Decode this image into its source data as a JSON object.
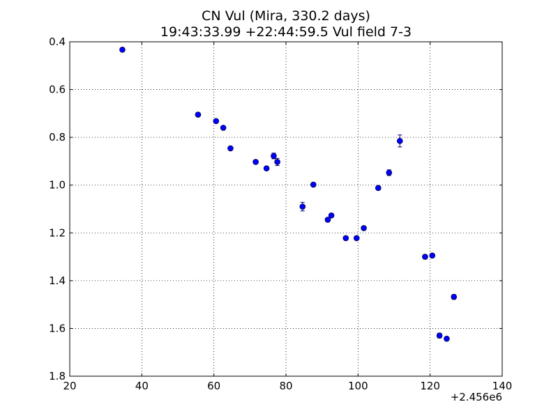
{
  "chart_data": {
    "type": "scatter",
    "title": "CN Vul (Mira, 330.2 days)",
    "subtitle": "19:43:33.99 +22:44:59.5 Vul field 7-3",
    "xlabel": "",
    "ylabel": "",
    "x_offset_label": "+2.456e6",
    "xlim": [
      20,
      140
    ],
    "ylim": [
      0.4,
      1.8
    ],
    "y_inverted": true,
    "grid": true,
    "x_ticks": [
      20,
      40,
      60,
      80,
      100,
      120,
      140
    ],
    "x_tick_labels": [
      "20",
      "40",
      "60",
      "80",
      "100",
      "120",
      "140"
    ],
    "y_ticks": [
      0.4,
      0.6,
      0.8,
      1.0,
      1.2,
      1.4,
      1.6,
      1.8
    ],
    "y_tick_labels": [
      "0.4",
      "0.6",
      "0.8",
      "1.0",
      "1.2",
      "1.4",
      "1.6",
      "1.8"
    ],
    "marker_color": "#0000ff",
    "errorbar_color": "#000080",
    "points": [
      {
        "x": 34.6,
        "y": 0.433,
        "err": 0.005
      },
      {
        "x": 55.6,
        "y": 0.705,
        "err": 0.006
      },
      {
        "x": 60.6,
        "y": 0.732,
        "err": 0.006
      },
      {
        "x": 62.6,
        "y": 0.76,
        "err": 0.006
      },
      {
        "x": 64.6,
        "y": 0.846,
        "err": 0.006
      },
      {
        "x": 71.6,
        "y": 0.903,
        "err": 0.007
      },
      {
        "x": 74.6,
        "y": 0.93,
        "err": 0.007
      },
      {
        "x": 76.6,
        "y": 0.878,
        "err": 0.012
      },
      {
        "x": 77.6,
        "y": 0.903,
        "err": 0.015
      },
      {
        "x": 84.6,
        "y": 1.09,
        "err": 0.018
      },
      {
        "x": 87.6,
        "y": 0.998,
        "err": 0.008
      },
      {
        "x": 91.6,
        "y": 1.145,
        "err": 0.008
      },
      {
        "x": 92.6,
        "y": 1.127,
        "err": 0.008
      },
      {
        "x": 96.6,
        "y": 1.222,
        "err": 0.008
      },
      {
        "x": 99.6,
        "y": 1.222,
        "err": 0.008
      },
      {
        "x": 101.6,
        "y": 1.18,
        "err": 0.008
      },
      {
        "x": 105.6,
        "y": 1.012,
        "err": 0.008
      },
      {
        "x": 108.6,
        "y": 0.948,
        "err": 0.012
      },
      {
        "x": 111.6,
        "y": 0.815,
        "err": 0.025
      },
      {
        "x": 118.6,
        "y": 1.3,
        "err": 0.008
      },
      {
        "x": 120.6,
        "y": 1.295,
        "err": 0.008
      },
      {
        "x": 122.6,
        "y": 1.63,
        "err": 0.01
      },
      {
        "x": 124.6,
        "y": 1.643,
        "err": 0.008
      },
      {
        "x": 126.6,
        "y": 1.468,
        "err": 0.01
      }
    ]
  }
}
